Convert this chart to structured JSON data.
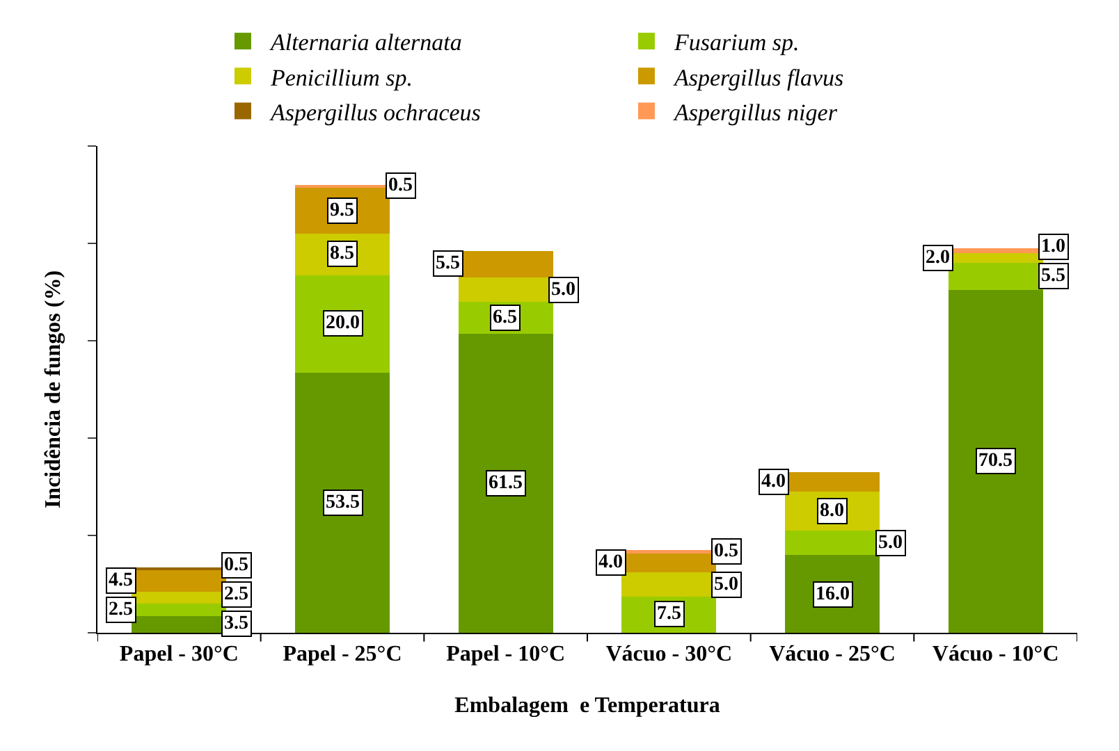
{
  "chart_data": {
    "type": "bar",
    "stacked": true,
    "xlabel": "Embalagem  e Temperatura",
    "ylabel": "Incidência de fungos (%)",
    "categories": [
      "Papel - 30°C",
      "Papel - 25°C",
      "Papel - 10°C",
      "Vácuo - 30°C",
      "Vácuo - 25°C",
      "Vácuo - 10°C"
    ],
    "series": [
      {
        "name": "Alternaria alternata",
        "color": "#669900",
        "values": [
          3.5,
          53.5,
          61.5,
          null,
          16.0,
          70.5
        ],
        "value_labels": [
          "3.5",
          "53.5",
          "61.5",
          null,
          "16.0",
          "70.5"
        ]
      },
      {
        "name": "Fusarium sp.",
        "color": "#99cc00",
        "values": [
          2.5,
          20.0,
          6.5,
          7.5,
          5.0,
          5.5
        ],
        "value_labels": [
          "2.5",
          "20.0",
          "6.5",
          "7.5",
          "5.0",
          "5.5"
        ]
      },
      {
        "name": "Penicillium sp.",
        "color": "#cccc00",
        "values": [
          2.5,
          8.5,
          5.0,
          5.0,
          8.0,
          2.0
        ],
        "value_labels": [
          "2.5",
          "8.5",
          "5.0",
          "5.0",
          "8.0",
          "2.0"
        ]
      },
      {
        "name": "Aspergillus flavus",
        "color": "#cc9900",
        "values": [
          4.5,
          9.5,
          5.5,
          4.0,
          4.0,
          null
        ],
        "value_labels": [
          "4.5",
          "9.5",
          "5.5",
          "4.0",
          "4.0",
          null
        ]
      },
      {
        "name": "Aspergillus ochraceus",
        "color": "#996600",
        "values": [
          0.5,
          null,
          null,
          null,
          null,
          null
        ],
        "value_labels": [
          "0.5",
          null,
          null,
          null,
          null,
          null
        ]
      },
      {
        "name": "Aspergillus niger",
        "color": "#ff9955",
        "values": [
          null,
          0.5,
          null,
          0.5,
          null,
          1.0
        ],
        "value_labels": [
          null,
          "0.5",
          null,
          "0.5",
          null,
          "1.0"
        ]
      }
    ],
    "ylim": [
      0,
      100
    ],
    "yticks": [
      {
        "value": 0,
        "label": null
      },
      {
        "value": 20,
        "label": null
      },
      {
        "value": 40,
        "label": null
      },
      {
        "value": 60,
        "label": null
      },
      {
        "value": 80,
        "label": null
      },
      {
        "value": 100,
        "label": null
      }
    ],
    "tick_labels": "x",
    "legend": "top"
  }
}
